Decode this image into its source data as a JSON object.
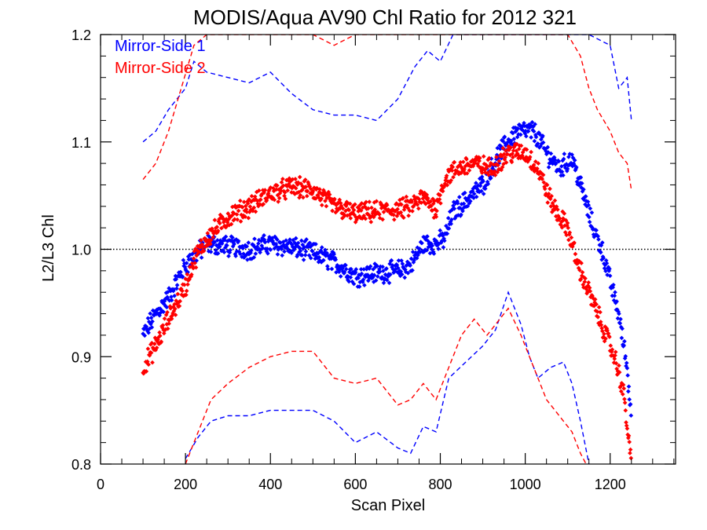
{
  "chart_data": {
    "type": "scatter",
    "title": "MODIS/Aqua AV90 Chl Ratio for 2012 321",
    "xlabel": "Scan Pixel",
    "ylabel": "L2/L3 Chl",
    "xlim": [
      0,
      1354
    ],
    "ylim": [
      0.8,
      1.2
    ],
    "x_ticks": [
      0,
      200,
      400,
      600,
      800,
      1000,
      1200
    ],
    "y_ticks": [
      0.8,
      0.9,
      1.0,
      1.1,
      1.2
    ],
    "x_tick_labels": [
      "0",
      "200",
      "400",
      "600",
      "800",
      "1000",
      "1200"
    ],
    "y_tick_labels": [
      "0.8",
      "0.9",
      "1.0",
      "1.1",
      "1.2"
    ],
    "reference_line": 1.0,
    "legend_position": "top-left",
    "series": [
      {
        "name": "Mirror-Side 1",
        "color": "#0000ff",
        "mean": [
          [
            100,
            0.92
          ],
          [
            130,
            0.94
          ],
          [
            160,
            0.955
          ],
          [
            200,
            0.985
          ],
          [
            250,
            1.005
          ],
          [
            300,
            1.003
          ],
          [
            350,
            1.0
          ],
          [
            400,
            1.005
          ],
          [
            450,
            1.002
          ],
          [
            500,
            0.997
          ],
          [
            550,
            0.988
          ],
          [
            600,
            0.975
          ],
          [
            650,
            0.978
          ],
          [
            700,
            0.98
          ],
          [
            730,
            0.985
          ],
          [
            760,
            1.005
          ],
          [
            790,
            1.005
          ],
          [
            810,
            1.01
          ],
          [
            830,
            1.035
          ],
          [
            860,
            1.045
          ],
          [
            900,
            1.06
          ],
          [
            940,
            1.09
          ],
          [
            980,
            1.11
          ],
          [
            1020,
            1.11
          ],
          [
            1050,
            1.09
          ],
          [
            1080,
            1.075
          ],
          [
            1110,
            1.085
          ],
          [
            1130,
            1.06
          ],
          [
            1160,
            1.02
          ],
          [
            1180,
            1.0
          ],
          [
            1200,
            0.97
          ],
          [
            1220,
            0.94
          ],
          [
            1240,
            0.89
          ],
          [
            1250,
            0.84
          ]
        ],
        "upper": [
          [
            100,
            1.1
          ],
          [
            130,
            1.11
          ],
          [
            160,
            1.13
          ],
          [
            200,
            1.15
          ],
          [
            220,
            1.175
          ],
          [
            250,
            1.165
          ],
          [
            300,
            1.16
          ],
          [
            350,
            1.155
          ],
          [
            400,
            1.165
          ],
          [
            450,
            1.145
          ],
          [
            500,
            1.13
          ],
          [
            550,
            1.125
          ],
          [
            600,
            1.125
          ],
          [
            650,
            1.12
          ],
          [
            700,
            1.14
          ],
          [
            740,
            1.17
          ],
          [
            770,
            1.185
          ],
          [
            800,
            1.175
          ],
          [
            830,
            1.2
          ],
          [
            860,
            1.2
          ],
          [
            900,
            1.2
          ],
          [
            950,
            1.2
          ],
          [
            1000,
            1.2
          ],
          [
            1050,
            1.2
          ],
          [
            1100,
            1.2
          ],
          [
            1150,
            1.2
          ],
          [
            1200,
            1.19
          ],
          [
            1220,
            1.15
          ],
          [
            1240,
            1.16
          ],
          [
            1250,
            1.12
          ]
        ],
        "lower": [
          [
            200,
            0.805
          ],
          [
            230,
            0.825
          ],
          [
            260,
            0.84
          ],
          [
            300,
            0.845
          ],
          [
            350,
            0.845
          ],
          [
            400,
            0.85
          ],
          [
            450,
            0.85
          ],
          [
            500,
            0.85
          ],
          [
            550,
            0.84
          ],
          [
            600,
            0.82
          ],
          [
            650,
            0.83
          ],
          [
            700,
            0.815
          ],
          [
            730,
            0.81
          ],
          [
            760,
            0.835
          ],
          [
            790,
            0.83
          ],
          [
            820,
            0.88
          ],
          [
            860,
            0.895
          ],
          [
            900,
            0.91
          ],
          [
            930,
            0.925
          ],
          [
            960,
            0.96
          ],
          [
            990,
            0.93
          ],
          [
            1010,
            0.9
          ],
          [
            1030,
            0.88
          ],
          [
            1060,
            0.89
          ],
          [
            1090,
            0.895
          ],
          [
            1110,
            0.875
          ],
          [
            1130,
            0.84
          ],
          [
            1150,
            0.8
          ]
        ]
      },
      {
        "name": "Mirror-Side 2",
        "color": "#ff0000",
        "mean": [
          [
            100,
            0.89
          ],
          [
            130,
            0.91
          ],
          [
            160,
            0.935
          ],
          [
            200,
            0.965
          ],
          [
            220,
            0.99
          ],
          [
            250,
            1.01
          ],
          [
            300,
            1.03
          ],
          [
            350,
            1.04
          ],
          [
            400,
            1.052
          ],
          [
            450,
            1.058
          ],
          [
            500,
            1.055
          ],
          [
            550,
            1.04
          ],
          [
            600,
            1.033
          ],
          [
            650,
            1.035
          ],
          [
            700,
            1.037
          ],
          [
            730,
            1.04
          ],
          [
            760,
            1.048
          ],
          [
            790,
            1.038
          ],
          [
            810,
            1.065
          ],
          [
            840,
            1.075
          ],
          [
            880,
            1.08
          ],
          [
            920,
            1.075
          ],
          [
            960,
            1.09
          ],
          [
            1000,
            1.09
          ],
          [
            1030,
            1.075
          ],
          [
            1060,
            1.045
          ],
          [
            1080,
            1.03
          ],
          [
            1100,
            1.02
          ],
          [
            1120,
            0.99
          ],
          [
            1150,
            0.96
          ],
          [
            1180,
            0.93
          ],
          [
            1210,
            0.9
          ],
          [
            1230,
            0.87
          ],
          [
            1250,
            0.8
          ]
        ],
        "upper": [
          [
            100,
            1.065
          ],
          [
            130,
            1.08
          ],
          [
            160,
            1.11
          ],
          [
            190,
            1.15
          ],
          [
            220,
            1.19
          ],
          [
            250,
            1.2
          ],
          [
            300,
            1.2
          ],
          [
            350,
            1.2
          ],
          [
            400,
            1.2
          ],
          [
            450,
            1.2
          ],
          [
            500,
            1.2
          ],
          [
            550,
            1.19
          ],
          [
            600,
            1.2
          ],
          [
            650,
            1.2
          ],
          [
            700,
            1.2
          ],
          [
            750,
            1.2
          ],
          [
            800,
            1.2
          ],
          [
            900,
            1.2
          ],
          [
            1000,
            1.2
          ],
          [
            1050,
            1.2
          ],
          [
            1100,
            1.2
          ],
          [
            1130,
            1.18
          ],
          [
            1150,
            1.15
          ],
          [
            1170,
            1.13
          ],
          [
            1200,
            1.11
          ],
          [
            1220,
            1.09
          ],
          [
            1240,
            1.08
          ],
          [
            1250,
            1.055
          ]
        ],
        "lower": [
          [
            200,
            0.8
          ],
          [
            230,
            0.83
          ],
          [
            260,
            0.86
          ],
          [
            300,
            0.875
          ],
          [
            350,
            0.89
          ],
          [
            400,
            0.9
          ],
          [
            450,
            0.905
          ],
          [
            500,
            0.905
          ],
          [
            550,
            0.88
          ],
          [
            600,
            0.875
          ],
          [
            650,
            0.88
          ],
          [
            700,
            0.855
          ],
          [
            730,
            0.86
          ],
          [
            760,
            0.875
          ],
          [
            790,
            0.86
          ],
          [
            820,
            0.89
          ],
          [
            850,
            0.92
          ],
          [
            880,
            0.935
          ],
          [
            910,
            0.92
          ],
          [
            940,
            0.935
          ],
          [
            960,
            0.945
          ],
          [
            990,
            0.92
          ],
          [
            1020,
            0.89
          ],
          [
            1050,
            0.86
          ],
          [
            1080,
            0.845
          ],
          [
            1110,
            0.83
          ],
          [
            1130,
            0.81
          ],
          [
            1150,
            0.795
          ]
        ]
      }
    ]
  }
}
